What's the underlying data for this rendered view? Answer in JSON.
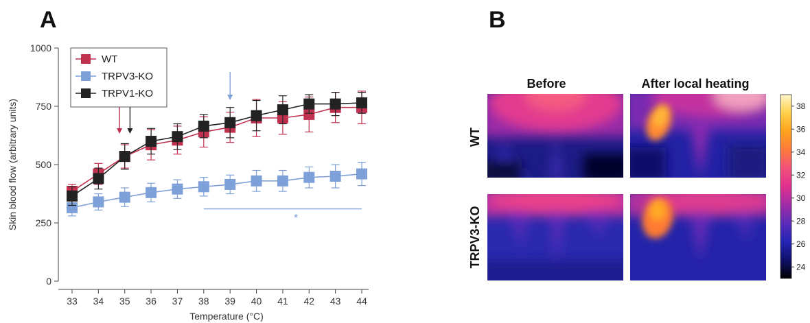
{
  "panel_a_letter": "A",
  "panel_b_letter": "B",
  "chart_data": [
    {
      "type": "line",
      "xlabel": "Temperature (°C)",
      "ylabel": "Skin blood flow (arbitrary units)",
      "x": [
        33,
        34,
        35,
        36,
        37,
        38,
        39,
        40,
        41,
        42,
        43,
        44
      ],
      "xlim": [
        33,
        44
      ],
      "ylim": [
        0,
        1000
      ],
      "yticks": [
        0,
        250,
        500,
        750,
        1000
      ],
      "grid": false,
      "legend": "top-left",
      "series": [
        {
          "name": "WT",
          "color": "#c0304f",
          "marker": "square",
          "values": [
            385,
            460,
            535,
            585,
            605,
            640,
            660,
            700,
            700,
            715,
            745,
            745
          ],
          "errors": [
            30,
            45,
            50,
            65,
            60,
            65,
            65,
            80,
            70,
            75,
            65,
            70
          ]
        },
        {
          "name": "TRPV3-KO",
          "color": "#7ea0d8",
          "marker": "square",
          "values": [
            315,
            340,
            360,
            380,
            395,
            405,
            415,
            430,
            430,
            445,
            450,
            460
          ],
          "errors": [
            35,
            35,
            40,
            40,
            40,
            40,
            40,
            45,
            45,
            45,
            50,
            50
          ]
        },
        {
          "name": "TRPV1-KO",
          "color": "#222222",
          "marker": "square",
          "values": [
            365,
            440,
            535,
            600,
            620,
            665,
            680,
            710,
            735,
            760,
            760,
            765
          ],
          "errors": [
            40,
            45,
            55,
            55,
            55,
            50,
            65,
            65,
            60,
            40,
            50,
            45
          ]
        }
      ],
      "annotations": {
        "arrows": [
          {
            "x": 35,
            "color": "#c0304f",
            "offset": -0.2
          },
          {
            "x": 35,
            "color": "#222222",
            "offset": 0.2
          },
          {
            "x": 39,
            "color": "#7ea0d8",
            "offset": 0
          }
        ],
        "significance_bar": {
          "x_start": 38,
          "x_end": 44,
          "y": 310,
          "color": "#7ea0d8"
        },
        "significance_mark": {
          "text": "*",
          "x": 41.5,
          "y": 270
        }
      }
    },
    {
      "type": "heatmap",
      "column_labels": [
        "Before",
        "After local heating"
      ],
      "row_labels": [
        "WT",
        "TRPV3-KO"
      ],
      "colorbar": {
        "ticks": [
          24,
          26,
          28,
          30,
          32,
          34,
          36,
          38
        ],
        "range": [
          23,
          39
        ],
        "colors": [
          "#000000",
          "#10106a",
          "#2424b6",
          "#5a2cb8",
          "#a02ca8",
          "#e0308f",
          "#f2527a",
          "#ff7a3c",
          "#ffa21c",
          "#ffd04a",
          "#fff6c8"
        ]
      }
    }
  ]
}
